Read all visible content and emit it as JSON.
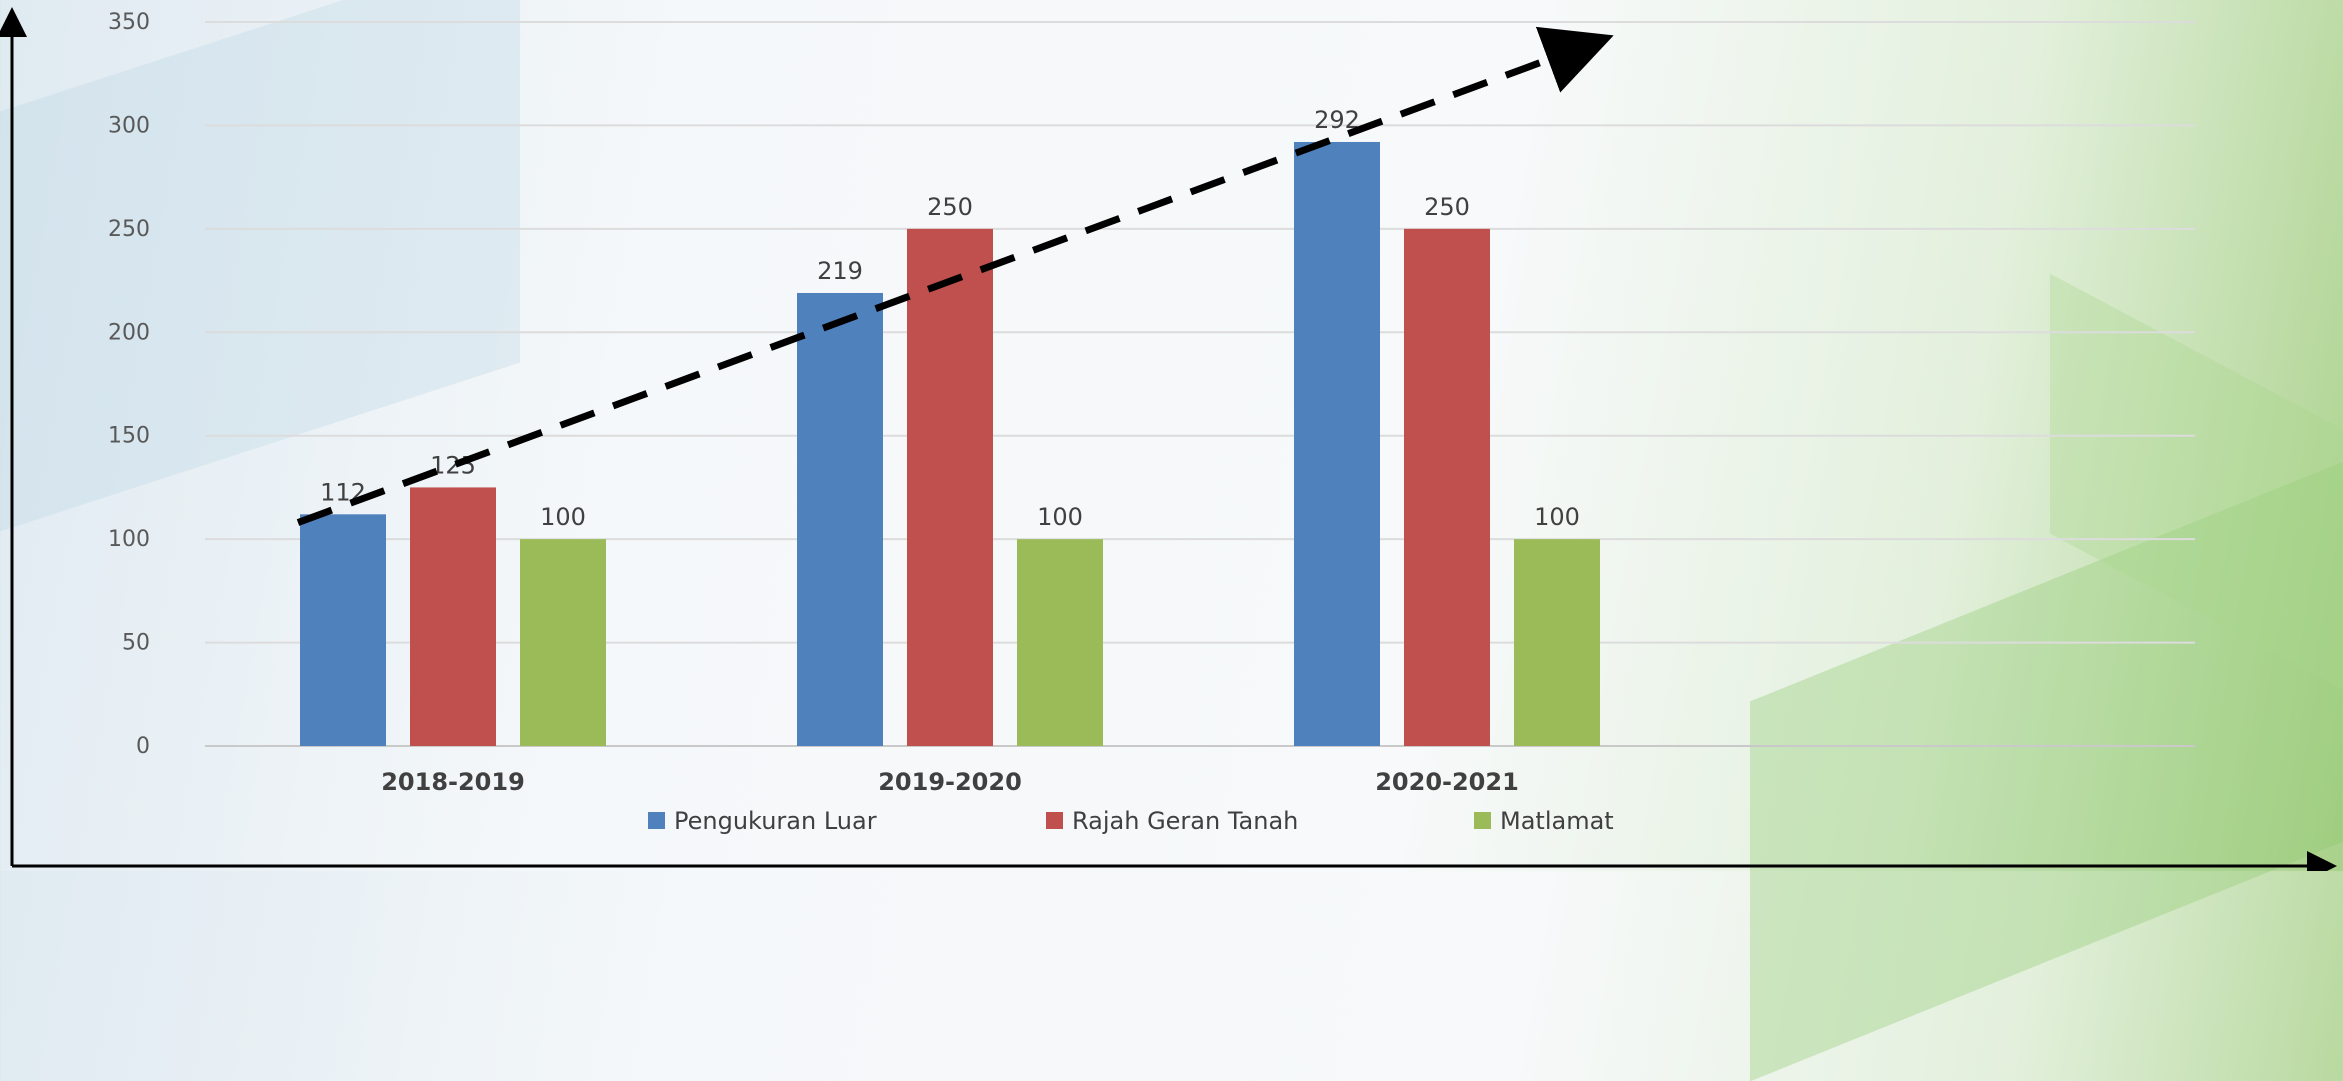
{
  "chart_data": {
    "type": "bar",
    "categories": [
      "2018-2019",
      "2019-2020",
      "2020-2021"
    ],
    "series": [
      {
        "name": "Pengukuran Luar",
        "values": [
          112,
          219,
          292
        ],
        "color": "#4f81bd"
      },
      {
        "name": "Rajah Geran Tanah",
        "values": [
          125,
          250,
          250
        ],
        "color": "#c0504d"
      },
      {
        "name": "Matlamat",
        "values": [
          100,
          100,
          100
        ],
        "color": "#9bbb59"
      }
    ],
    "data_labels": [
      [
        "112",
        "219",
        "292"
      ],
      [
        "125",
        "250",
        "250"
      ],
      [
        "100",
        "100",
        "100"
      ]
    ],
    "ylim": [
      0,
      350
    ],
    "yticks": [
      0,
      50,
      100,
      150,
      200,
      250,
      300,
      350
    ],
    "grid": true,
    "legend_position": "bottom",
    "title": "",
    "xlabel": "",
    "ylabel": "",
    "annotations": [
      {
        "type": "dashed-arrow",
        "from": {
          "category": "2018-2019",
          "value": 108
        },
        "to": {
          "category": "2020-2021",
          "value": 340
        }
      }
    ]
  }
}
